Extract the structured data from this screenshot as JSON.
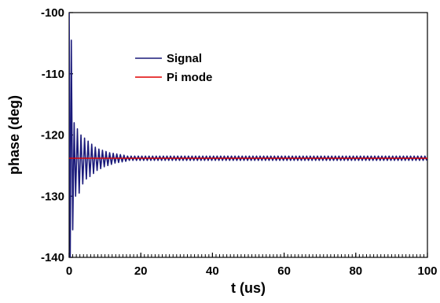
{
  "chart_data": {
    "type": "line",
    "title": "",
    "xlabel": "t (us)",
    "ylabel": "phase (deg)",
    "xlim": [
      0,
      100
    ],
    "ylim": [
      -140,
      -100
    ],
    "xticks": [
      0,
      20,
      40,
      60,
      80,
      100
    ],
    "yticks": [
      -140,
      -130,
      -120,
      -110,
      -100
    ],
    "xtick_labels": [
      "0",
      "20",
      "40",
      "60",
      "80",
      "100"
    ],
    "ytick_labels": [
      "-140",
      "-130",
      "-120",
      "-110",
      "-100"
    ],
    "grid": false,
    "legend_position": "top-center",
    "series": [
      {
        "name": "Signal",
        "color": "#1a1a7a",
        "description": "damped oscillation settling around -123.8 deg",
        "settle_value": -123.8,
        "oscillation_period_us": 1.0,
        "points": [
          [
            0.0,
            -100.0
          ],
          [
            0.3,
            -140.0
          ],
          [
            0.6,
            -104.5
          ],
          [
            1.0,
            -135.5
          ],
          [
            1.4,
            -118.0
          ],
          [
            1.8,
            -130.0
          ],
          [
            2.3,
            -119.0
          ],
          [
            2.8,
            -129.5
          ],
          [
            3.3,
            -120.0
          ],
          [
            3.8,
            -128.0
          ],
          [
            4.3,
            -120.5
          ],
          [
            4.8,
            -127.2
          ],
          [
            5.3,
            -121.0
          ],
          [
            5.8,
            -126.8
          ],
          [
            6.3,
            -121.5
          ],
          [
            6.8,
            -126.3
          ],
          [
            7.3,
            -122.0
          ],
          [
            7.8,
            -125.8
          ],
          [
            8.3,
            -122.3
          ],
          [
            8.8,
            -125.5
          ],
          [
            9.3,
            -122.5
          ],
          [
            9.8,
            -125.2
          ],
          [
            10.3,
            -122.7
          ],
          [
            10.8,
            -125.0
          ],
          [
            11.3,
            -122.9
          ],
          [
            11.8,
            -124.8
          ],
          [
            12.3,
            -123.0
          ],
          [
            12.8,
            -124.6
          ],
          [
            13.3,
            -123.1
          ],
          [
            13.8,
            -124.5
          ],
          [
            14.3,
            -123.2
          ],
          [
            14.8,
            -124.4
          ],
          [
            15.3,
            -123.3
          ],
          [
            15.8,
            -124.3
          ]
        ],
        "steady_amplitude": 0.35
      },
      {
        "name": "Pi mode",
        "color": "#e00000",
        "points": [
          [
            0,
            -123.8
          ],
          [
            100,
            -123.8
          ]
        ]
      }
    ],
    "x_minor_ticks_per_major": 10
  }
}
